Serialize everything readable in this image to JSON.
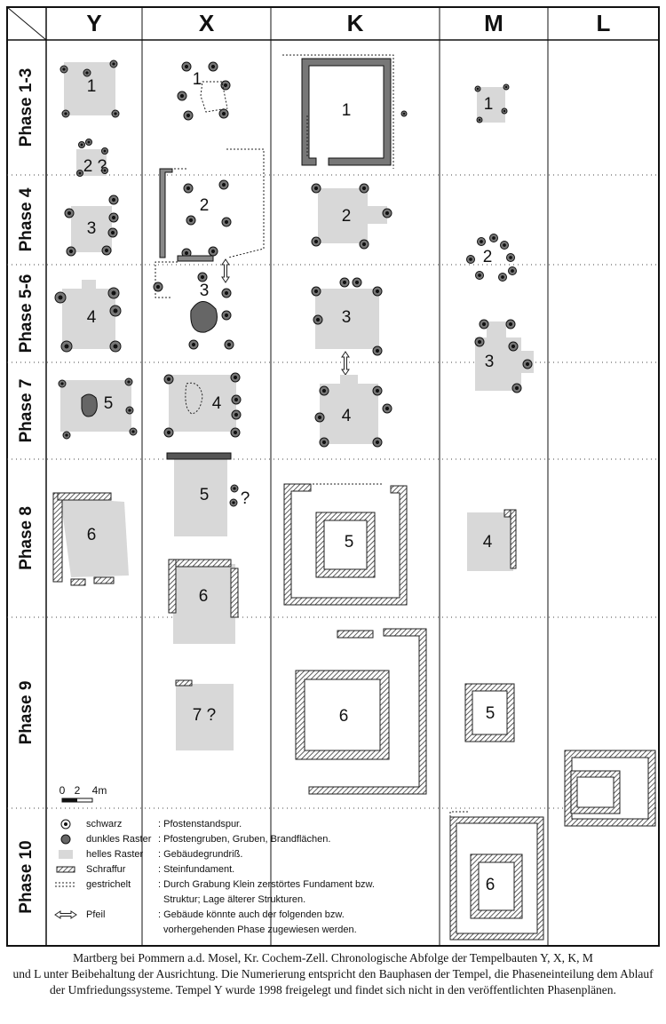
{
  "columns": [
    "Y",
    "X",
    "K",
    "M",
    "L"
  ],
  "phases": [
    "Phase 1-3",
    "Phase 4",
    "Phase 5-6",
    "Phase 7",
    "Phase 8",
    "Phase 9",
    "Phase 10"
  ],
  "buildings": {
    "Y": [
      "1",
      "2 ?",
      "3",
      "4",
      "5",
      "6"
    ],
    "X": [
      "1",
      "2",
      "3",
      "4",
      "5",
      "?",
      "6",
      "7 ?"
    ],
    "K": [
      "1",
      "2",
      "3",
      "4",
      "5",
      "6"
    ],
    "M": [
      "1",
      "2",
      "3",
      "4",
      "5",
      "6"
    ]
  },
  "scale": [
    "0",
    "2",
    "4m"
  ],
  "legend": [
    {
      "term": "schwarz",
      "desc": [
        ": Pfostenstandspur."
      ]
    },
    {
      "term": "dunkles Raster",
      "desc": [
        ": Pfostengruben, Gruben, Brandflächen."
      ]
    },
    {
      "term": "helles Raster",
      "desc": [
        ": Gebäudegrundriß."
      ]
    },
    {
      "term": "Schraffur",
      "desc": [
        ": Steinfundament."
      ]
    },
    {
      "term": "gestrichelt",
      "desc": [
        ": Durch Grabung Klein zerstörtes Fundament bzw.",
        "Struktur; Lage älterer Strukturen."
      ]
    },
    {
      "term": "Pfeil",
      "desc": [
        ": Gebäude könnte auch der folgenden bzw.",
        "vorhergehenden Phase zugewiesen werden."
      ]
    }
  ],
  "caption": [
    "Martberg bei Pommern a.d. Mosel, Kr. Cochem-Zell. Chronologische Abfolge der Tempelbauten Y, X, K, M",
    "und L unter Beibehaltung der Ausrichtung. Die Numerierung entspricht den Bauphasen der Tempel, die Phaseneinteilung dem Ablauf der Umfriedungssysteme. Tempel Y wurde 1998 freigelegt und findet sich nicht in den veröffentlichten Phasenplänen."
  ]
}
